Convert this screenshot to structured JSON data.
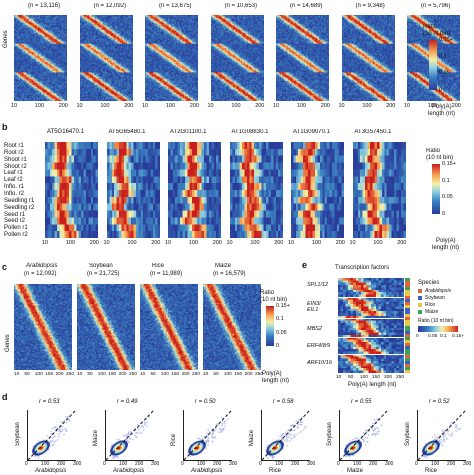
{
  "panel_a": {
    "letter": "a",
    "samples": [
      {
        "name": "",
        "n": "(n = 13,116)"
      },
      {
        "name": "",
        "n": "(n = 12,092)"
      },
      {
        "name": "",
        "n": "(n = 13,675)"
      },
      {
        "name": "",
        "n": "(n = 10,653)"
      },
      {
        "name": "",
        "n": "(n = 14,689)"
      },
      {
        "name": "",
        "n": "(n = 9,348)"
      },
      {
        "name": "",
        "n": "(n = 5,796)"
      }
    ],
    "ylabel": "Genes",
    "x_ticks": [
      "10",
      "100",
      "200"
    ],
    "colorbar": {
      "title": "Ratio",
      "subtitle": "(10 nt bin)",
      "ticks": [
        "0.15+",
        "0.1",
        "0.05",
        "0"
      ]
    },
    "xlabel_line1": "Poly(A)",
    "xlabel_line2": "length (nt)"
  },
  "panel_b": {
    "letter": "b",
    "genes": [
      "AT5G16470.1",
      "AT5G65480.1",
      "AT2G01100.1",
      "AT1G08830.1",
      "AT1G09070.1",
      "AT3G57450.1"
    ],
    "rows": [
      "Root r1",
      "Root r2",
      "Shoot r1",
      "Shoot r2",
      "Leaf r1",
      "Leaf r2",
      "Inflo. r1",
      "Inflo. r2",
      "Seedling r1",
      "Seedling r2",
      "Seed r1",
      "Seed r2",
      "Pollen r1",
      "Pollen r2"
    ],
    "x_ticks": [
      "10",
      "100",
      "200"
    ],
    "colorbar": {
      "title": "Ratio",
      "subtitle": "(10 nt bin)",
      "ticks": [
        "0.15+",
        "0.1",
        "0.05",
        "0"
      ]
    },
    "xlabel_line1": "Poly(A)",
    "xlabel_line2": "length (nt)"
  },
  "panel_c": {
    "letter": "c",
    "species": [
      {
        "name": "Arabidopsis",
        "n": "(n = 12,092)"
      },
      {
        "name": "Soybean",
        "n": "(n = 21,725)"
      },
      {
        "name": "Rice",
        "n": "(n = 11,989)"
      },
      {
        "name": "Maize",
        "n": "(n = 16,579)"
      }
    ],
    "ylabel": "Genes",
    "x_ticks": [
      "10",
      "50",
      "100",
      "150",
      "200",
      "250"
    ],
    "colorbar": {
      "title": "Ratio",
      "subtitle": "(10 nt bin)",
      "ticks": [
        "0.15+",
        "0.1",
        "0.05",
        "0"
      ]
    },
    "xlabel_line1": "Poly(A)",
    "xlabel_line2": "length (nt)"
  },
  "panel_e": {
    "letter": "e",
    "title": "Transcription factors",
    "families": [
      "SPL1/12",
      "EIN3/",
      "EIL1",
      "MBS2",
      "ERF4/8/9",
      "ARF10/16"
    ],
    "x_ticks": [
      "10",
      "50",
      "100",
      "150",
      "200",
      "250"
    ],
    "species_legend_title": "Species",
    "species_legend": [
      {
        "name": "Arabidopsis",
        "color": "#e0663a"
      },
      {
        "name": "Soybean",
        "color": "#3a5fc8"
      },
      {
        "name": "Rice",
        "color": "#e8c840"
      },
      {
        "name": "Maize",
        "color": "#3aa35a"
      }
    ],
    "colorbar": {
      "title": "Ratio (10 nt bin)",
      "ticks": [
        "0",
        "0.05",
        "0.1",
        "0.15+"
      ]
    },
    "xlabel": "Poly(A) length (nt)"
  },
  "panel_d": {
    "letter": "d",
    "plots": [
      {
        "r": "r = 0.53",
        "ylabel": "Soybean",
        "xlabel": "Arabidopsis"
      },
      {
        "r": "r = 0.49",
        "ylabel": "Maize",
        "xlabel": "Arabidopsis"
      },
      {
        "r": "r = 0.50",
        "ylabel": "Rice",
        "xlabel": "Arabidopsis"
      },
      {
        "r": "r = 0.58",
        "ylabel": "Maize",
        "xlabel": "Rice"
      },
      {
        "r": "r = 0.55",
        "ylabel": "Soybean",
        "xlabel": "Maize"
      },
      {
        "r": "r = 0.52",
        "ylabel": "Soybean",
        "xlabel": "Rice"
      }
    ],
    "x_ticks": [
      "0",
      "100",
      "200",
      "300"
    ]
  }
}
